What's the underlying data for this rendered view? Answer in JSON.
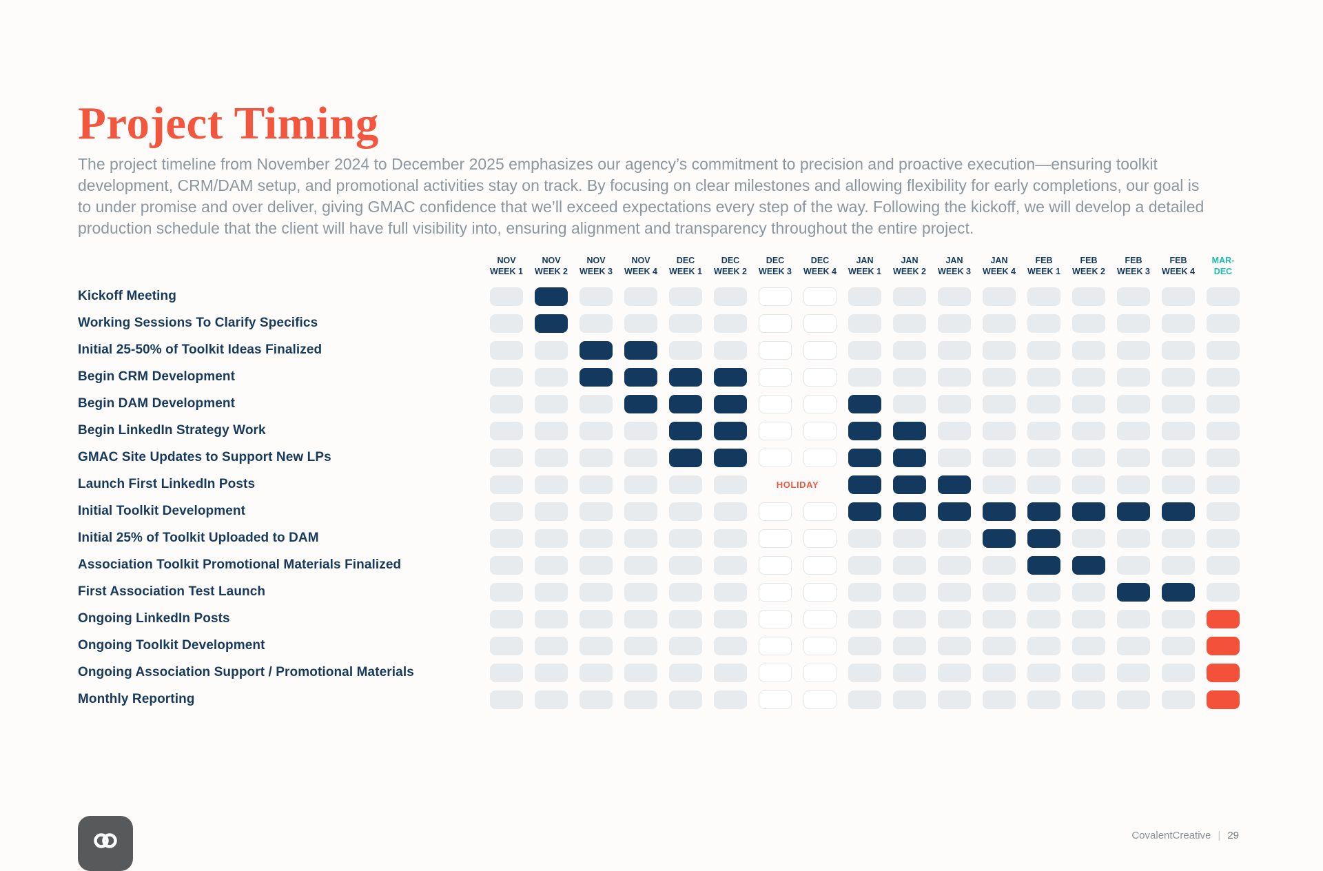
{
  "page": {
    "title": "Project Timing",
    "description": "The project timeline from November 2024 to December 2025 emphasizes our agency’s commitment to precision and proactive execution—ensuring toolkit development, CRM/DAM setup, and promotional activities stay on track. By focusing on clear milestones and allowing flexibility for early completions, our goal is to under promise and over deliver, giving GMAC confidence that we’ll exceed expectations every step of the way. Following the kickoff, we will develop a detailed production schedule that the client will have full visibility into, ensuring alignment and transparency throughout the entire project."
  },
  "colors": {
    "title": "#F2563F",
    "task_label": "#16395C",
    "body_text": "#8D969C",
    "cell_empty": "#E7EBED",
    "cell_filled": "#14395E",
    "cell_holiday_bg": "#FFFFFF",
    "cell_holiday_border": "#E2E7EA",
    "cell_ongoing": "#F4513B",
    "header_text": "#14395E",
    "header_accent": "#1CBCAE",
    "holiday_text": "#F2563F"
  },
  "chart_data": {
    "type": "gantt",
    "title": "Project Timing",
    "columns": [
      {
        "month": "NOV",
        "week": "WEEK 1"
      },
      {
        "month": "NOV",
        "week": "WEEK 2"
      },
      {
        "month": "NOV",
        "week": "WEEK 3"
      },
      {
        "month": "NOV",
        "week": "WEEK 4"
      },
      {
        "month": "DEC",
        "week": "WEEK 1"
      },
      {
        "month": "DEC",
        "week": "WEEK 2"
      },
      {
        "month": "DEC",
        "week": "WEEK 3"
      },
      {
        "month": "DEC",
        "week": "WEEK 4"
      },
      {
        "month": "JAN",
        "week": "WEEK 1"
      },
      {
        "month": "JAN",
        "week": "WEEK 2"
      },
      {
        "month": "JAN",
        "week": "WEEK 3"
      },
      {
        "month": "JAN",
        "week": "WEEK 4"
      },
      {
        "month": "FEB",
        "week": "WEEK 1"
      },
      {
        "month": "FEB",
        "week": "WEEK 2"
      },
      {
        "month": "FEB",
        "week": "WEEK 3"
      },
      {
        "month": "FEB",
        "week": "WEEK 4"
      },
      {
        "month": "MAR-",
        "week": "DEC",
        "accent": true
      }
    ],
    "holiday": {
      "columns": [
        6,
        7
      ],
      "label": "HOLIDAY",
      "label_row": 7
    },
    "rows": [
      {
        "label": "Kickoff Meeting",
        "filled": [
          1
        ],
        "ongoing": []
      },
      {
        "label": "Working Sessions To Clarify Specifics",
        "filled": [
          1
        ],
        "ongoing": []
      },
      {
        "label": "Initial 25-50% of Toolkit Ideas Finalized",
        "filled": [
          2,
          3
        ],
        "ongoing": []
      },
      {
        "label": "Begin CRM Development",
        "filled": [
          2,
          3,
          4,
          5
        ],
        "ongoing": []
      },
      {
        "label": "Begin DAM Development",
        "filled": [
          3,
          4,
          5,
          8
        ],
        "ongoing": []
      },
      {
        "label": "Begin LinkedIn Strategy Work",
        "filled": [
          4,
          5,
          8,
          9
        ],
        "ongoing": []
      },
      {
        "label": "GMAC Site Updates to Support New LPs",
        "filled": [
          4,
          5,
          8,
          9
        ],
        "ongoing": []
      },
      {
        "label": "Launch First LinkedIn Posts",
        "filled": [
          8,
          9,
          10
        ],
        "ongoing": []
      },
      {
        "label": "Initial Toolkit Development",
        "filled": [
          8,
          9,
          10,
          11,
          12,
          13,
          14,
          15
        ],
        "ongoing": []
      },
      {
        "label": "Initial 25% of Toolkit Uploaded to DAM",
        "filled": [
          11,
          12
        ],
        "ongoing": []
      },
      {
        "label": "Association Toolkit Promotional Materials Finalized",
        "filled": [
          12,
          13
        ],
        "ongoing": []
      },
      {
        "label": "First Association Test Launch",
        "filled": [
          14,
          15
        ],
        "ongoing": []
      },
      {
        "label": "Ongoing LinkedIn Posts",
        "filled": [],
        "ongoing": [
          16
        ]
      },
      {
        "label": "Ongoing Toolkit Development",
        "filled": [],
        "ongoing": [
          16
        ]
      },
      {
        "label": "Ongoing Association Support / Promotional Materials",
        "filled": [],
        "ongoing": [
          16
        ]
      },
      {
        "label": "Monthly Reporting",
        "filled": [],
        "ongoing": [
          16
        ]
      }
    ]
  },
  "footer": {
    "brand": "CovalentCreative",
    "divider": "|",
    "page": "29",
    "logo": "covalent-link-icon"
  }
}
